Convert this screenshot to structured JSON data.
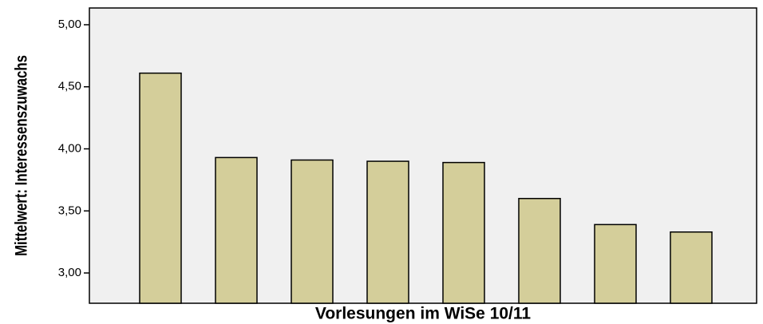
{
  "chart_data": {
    "type": "bar",
    "x_label": "Vorlesungen im WiSe 10/11",
    "y_label": "Mittelwert: Interessenszuwachs",
    "categories": [
      null,
      null,
      null,
      null,
      null,
      null,
      null,
      null
    ],
    "values": [
      4.61,
      3.93,
      3.91,
      3.9,
      3.89,
      3.6,
      3.39,
      3.33
    ],
    "color": "#d4ce9a",
    "ylim": [
      2.756,
      5.135
    ],
    "yticks": [
      {
        "value": 3,
        "label": "3,00"
      },
      {
        "value": 3.5,
        "label": "3,50"
      },
      {
        "value": 4,
        "label": "4,00"
      },
      {
        "value": 4.5,
        "label": "4,50"
      },
      {
        "value": 5,
        "label": "5,00"
      }
    ],
    "grid": false
  }
}
